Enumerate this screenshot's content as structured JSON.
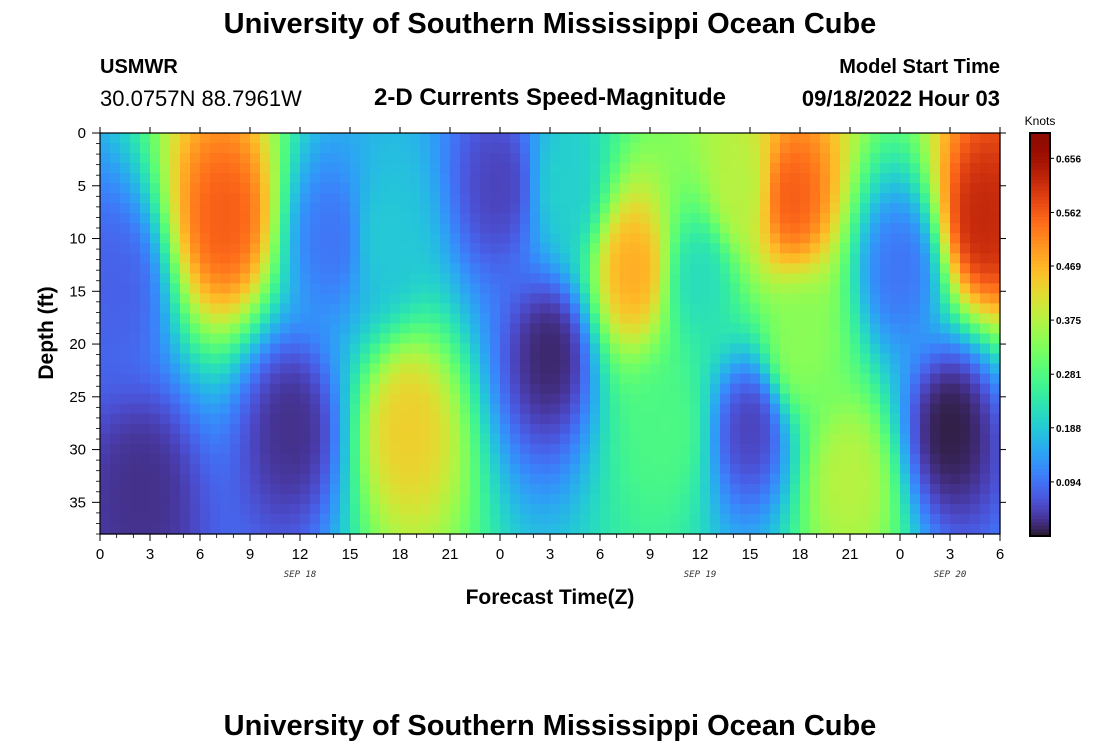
{
  "header": {
    "title": "University of Southern Mississippi Ocean Cube",
    "station_name": "USMWR",
    "station_coords": "30.0757N  88.7961W",
    "subtitle": "2-D Currents Speed-Magnitude",
    "model_start_label": "Model Start Time",
    "model_start_value": "09/18/2022 Hour 03"
  },
  "footer": {
    "title": "University of Southern Mississippi Ocean Cube"
  },
  "chart_data": {
    "type": "heatmap",
    "title": "2-D Currents Speed-Magnitude",
    "xlabel": "Forecast Time(Z)",
    "ylabel": "Depth (ft)",
    "x_tick_labels": [
      "0",
      "3",
      "6",
      "9",
      "12",
      "15",
      "18",
      "21",
      "0",
      "3",
      "6",
      "9",
      "12",
      "15",
      "18",
      "21",
      "0",
      "3",
      "6"
    ],
    "x_date_labels": [
      {
        "label": "SEP 18",
        "hours_from_start": 12
      },
      {
        "label": "SEP 19",
        "hours_from_start": 36
      },
      {
        "label": "SEP 20",
        "hours_from_start": 51
      }
    ],
    "xlim_hours": [
      0,
      54
    ],
    "ylim_ft": [
      0,
      38
    ],
    "y_tick_labels": [
      "0",
      "5",
      "10",
      "15",
      "20",
      "25",
      "30",
      "35"
    ],
    "y_ticks": [
      0,
      5,
      10,
      15,
      20,
      25,
      30,
      35
    ],
    "colorbar": {
      "unit": "Knots",
      "labels": [
        "0.656",
        "0.562",
        "0.469",
        "0.375",
        "0.281",
        "0.188",
        "0.094"
      ],
      "ticks": [
        0.656,
        0.562,
        0.469,
        0.375,
        0.281,
        0.188,
        0.094
      ],
      "range": [
        0.0,
        0.7
      ],
      "colormap": "turbo"
    },
    "features": [
      {
        "t": 7.5,
        "d": 8,
        "speed": 0.56
      },
      {
        "t": 1,
        "d": 15,
        "speed": 0.08
      },
      {
        "t": 2.5,
        "d": 34,
        "speed": 0.03
      },
      {
        "t": 11.5,
        "d": 28,
        "speed": 0.03
      },
      {
        "t": 14,
        "d": 10,
        "speed": 0.1
      },
      {
        "t": 18.5,
        "d": 28,
        "speed": 0.44
      },
      {
        "t": 17,
        "d": 10,
        "speed": 0.19
      },
      {
        "t": 24,
        "d": 5,
        "speed": 0.05
      },
      {
        "t": 27,
        "d": 21,
        "speed": 0.02
      },
      {
        "t": 28,
        "d": 5,
        "speed": 0.2
      },
      {
        "t": 32,
        "d": 13,
        "speed": 0.48
      },
      {
        "t": 34,
        "d": 28,
        "speed": 0.28
      },
      {
        "t": 36,
        "d": 14,
        "speed": 0.22
      },
      {
        "t": 38.5,
        "d": 5,
        "speed": 0.38
      },
      {
        "t": 39,
        "d": 28,
        "speed": 0.05
      },
      {
        "t": 41.5,
        "d": 6,
        "speed": 0.56
      },
      {
        "t": 42,
        "d": 20,
        "speed": 0.34
      },
      {
        "t": 45,
        "d": 33,
        "speed": 0.38
      },
      {
        "t": 48,
        "d": 13,
        "speed": 0.1
      },
      {
        "t": 51,
        "d": 28,
        "speed": 0.01
      },
      {
        "t": 53,
        "d": 8,
        "speed": 0.62
      }
    ]
  }
}
